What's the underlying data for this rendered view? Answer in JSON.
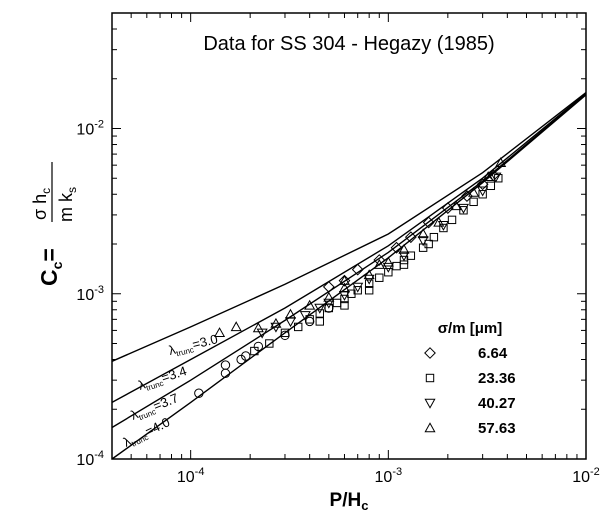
{
  "chart_data": {
    "type": "scatter",
    "title": "Data for SS 304 - Hegazy (1985)",
    "x_scale": "log",
    "y_scale": "log",
    "xlim": [
      4e-05,
      0.01
    ],
    "ylim": [
      0.0001,
      0.05
    ],
    "x_ticks": [
      {
        "value": 0.0001,
        "base": "10",
        "exp": "-4"
      },
      {
        "value": 0.001,
        "base": "10",
        "exp": "-3"
      },
      {
        "value": 0.01,
        "base": "10",
        "exp": "-2"
      }
    ],
    "y_ticks": [
      {
        "value": 0.0001,
        "base": "10",
        "exp": "-4"
      },
      {
        "value": 0.001,
        "base": "10",
        "exp": "-3"
      },
      {
        "value": 0.01,
        "base": "10",
        "exp": "-2"
      }
    ],
    "xlabel": {
      "main": "P/H",
      "sub": "c"
    },
    "ylabel": {
      "lhs": "C",
      "lhs_sub": "c",
      "num": "σ h",
      "num_sub": "c",
      "den": "m k",
      "den_sub": "s"
    },
    "legend": {
      "title": "σ/m [μm]",
      "position": "bottom-right",
      "entries": [
        {
          "marker": "diamond",
          "label": "6.64"
        },
        {
          "marker": "square",
          "label": "23.36"
        },
        {
          "marker": "triangle-down",
          "label": "40.27"
        },
        {
          "marker": "triangle-up",
          "label": "57.63"
        }
      ]
    },
    "lines": [
      {
        "label_symbol": "λ",
        "label_sub": "trunc",
        "label_value": "=3.0",
        "points": [
          [
            4e-05,
            0.00039
          ],
          [
            0.0001,
            0.00063
          ],
          [
            0.0003,
            0.00114
          ],
          [
            0.001,
            0.0023
          ],
          [
            0.003,
            0.0054
          ],
          [
            0.01,
            0.0165
          ]
        ]
      },
      {
        "label_symbol": "λ",
        "label_sub": "trunc",
        "label_value": "=3.4",
        "points": [
          [
            4e-05,
            0.00022
          ],
          [
            0.0001,
            0.0004
          ],
          [
            0.0003,
            0.00082
          ],
          [
            0.001,
            0.00195
          ],
          [
            0.003,
            0.005
          ],
          [
            0.01,
            0.0163
          ]
        ]
      },
      {
        "label_symbol": "λ",
        "label_sub": "trunc",
        "label_value": "=3.7",
        "points": [
          [
            4e-05,
            0.000155
          ],
          [
            0.0001,
            0.0003
          ],
          [
            0.0003,
            0.00069
          ],
          [
            0.001,
            0.00178
          ],
          [
            0.003,
            0.0048
          ],
          [
            0.01,
            0.0162
          ]
        ]
      },
      {
        "label_symbol": "λ",
        "label_sub": "trunc",
        "label_value": "=4.0",
        "points": [
          [
            4e-05,
            0.0001
          ],
          [
            0.0001,
            0.00022
          ],
          [
            0.0003,
            0.00058
          ],
          [
            0.001,
            0.00165
          ],
          [
            0.003,
            0.0047
          ],
          [
            0.01,
            0.016
          ]
        ]
      }
    ],
    "series": [
      {
        "marker": "diamond",
        "points": [
          [
            0.0005,
            0.0011
          ],
          [
            0.0006,
            0.0012
          ],
          [
            0.0007,
            0.0014
          ],
          [
            0.0009,
            0.0016
          ],
          [
            0.0011,
            0.0019
          ],
          [
            0.0013,
            0.0022
          ],
          [
            0.0016,
            0.0027
          ],
          [
            0.002,
            0.0033
          ],
          [
            0.0025,
            0.0039
          ],
          [
            0.003,
            0.0046
          ],
          [
            0.0034,
            0.0052
          ]
        ]
      },
      {
        "marker": "square",
        "points": [
          [
            0.00021,
            0.00045
          ],
          [
            0.00025,
            0.0005
          ],
          [
            0.0003,
            0.00058
          ],
          [
            0.00035,
            0.00063
          ],
          [
            0.0004,
            0.0007
          ],
          [
            0.00045,
            0.00076
          ],
          [
            0.0005,
            0.00082
          ],
          [
            0.00055,
            0.00088
          ],
          [
            0.0006,
            0.00093
          ],
          [
            0.00065,
            0.001
          ],
          [
            0.0007,
            0.00105
          ],
          [
            0.0008,
            0.00115
          ],
          [
            0.0009,
            0.00125
          ],
          [
            0.001,
            0.00135
          ],
          [
            0.0011,
            0.00147
          ],
          [
            0.0012,
            0.0016
          ],
          [
            0.0013,
            0.0017
          ],
          [
            0.0015,
            0.0019
          ],
          [
            0.0017,
            0.0022
          ],
          [
            0.0019,
            0.0025
          ],
          [
            0.0021,
            0.0028
          ],
          [
            0.0024,
            0.0032
          ],
          [
            0.0027,
            0.0036
          ],
          [
            0.003,
            0.004
          ],
          [
            0.0033,
            0.0045
          ],
          [
            0.0036,
            0.005
          ],
          [
            0.00045,
            0.00068
          ],
          [
            0.0006,
            0.00085
          ],
          [
            0.0008,
            0.00105
          ],
          [
            0.0012,
            0.0015
          ],
          [
            0.0016,
            0.002
          ]
        ]
      },
      {
        "marker": "circle",
        "points": [
          [
            0.00011,
            0.00025
          ],
          [
            0.00015,
            0.00033
          ],
          [
            0.00015,
            0.00037
          ],
          [
            0.00018,
            0.0004
          ],
          [
            0.00019,
            0.00042
          ],
          [
            0.00022,
            0.00048
          ],
          [
            0.0003,
            0.00056
          ],
          [
            0.0004,
            0.00068
          ],
          [
            0.0005,
            0.00082
          ]
        ]
      },
      {
        "marker": "triangle-down",
        "points": [
          [
            0.00023,
            0.00058
          ],
          [
            0.00027,
            0.00063
          ],
          [
            0.00032,
            0.00068
          ],
          [
            0.00038,
            0.00074
          ],
          [
            0.00045,
            0.00082
          ],
          [
            0.0005,
            0.00088
          ],
          [
            0.0006,
            0.00098
          ],
          [
            0.0007,
            0.0011
          ],
          [
            0.0008,
            0.00123
          ],
          [
            0.001,
            0.00145
          ],
          [
            0.0012,
            0.0017
          ],
          [
            0.0015,
            0.0021
          ],
          [
            0.0019,
            0.0026
          ],
          [
            0.0024,
            0.0033
          ],
          [
            0.003,
            0.0042
          ],
          [
            0.0035,
            0.0051
          ]
        ]
      },
      {
        "marker": "triangle-up",
        "points": [
          [
            0.00014,
            0.00058
          ],
          [
            0.00017,
            0.00063
          ],
          [
            0.00022,
            0.00062
          ],
          [
            0.00027,
            0.00066
          ],
          [
            0.00032,
            0.00075
          ],
          [
            0.0004,
            0.00085
          ],
          [
            0.0005,
            0.00095
          ],
          [
            0.0006,
            0.00108
          ],
          [
            0.0008,
            0.0013
          ],
          [
            0.001,
            0.00155
          ],
          [
            0.0012,
            0.00185
          ],
          [
            0.0015,
            0.0023
          ],
          [
            0.0018,
            0.0027
          ],
          [
            0.0022,
            0.0034
          ],
          [
            0.0027,
            0.0041
          ],
          [
            0.0032,
            0.0051
          ],
          [
            0.0037,
            0.0062
          ],
          [
            0.0006,
            0.0012
          ],
          [
            0.0009,
            0.0015
          ]
        ]
      }
    ]
  }
}
